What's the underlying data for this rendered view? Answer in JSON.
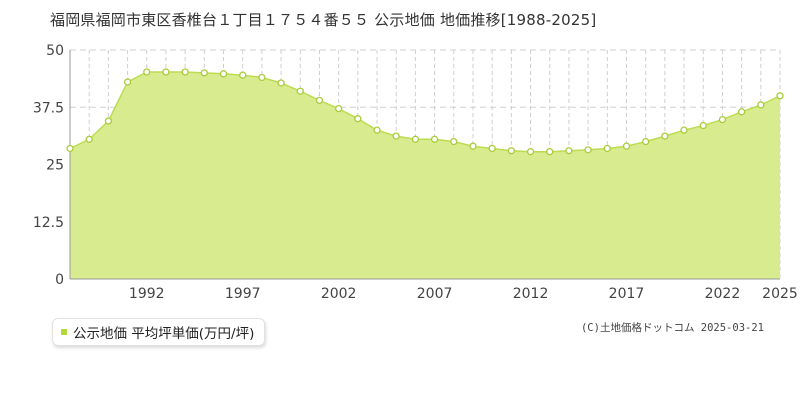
{
  "title": "福岡県福岡市東区香椎台１丁目１７５４番５５ 公示地価 地価推移[1988-2025]",
  "legend": {
    "label": "公示地価 平均坪単価(万円/坪)"
  },
  "copyright": "(C)土地価格ドットコム 2025-03-21",
  "colors": {
    "fill": "#d8ec8f",
    "line": "#bcdc52",
    "marker_fill": "#ffffff",
    "marker_stroke": "#a8cc3a",
    "legend_swatch": "#b3d83c"
  },
  "chart_data": {
    "type": "area",
    "x": [
      1988,
      1989,
      1990,
      1991,
      1992,
      1993,
      1994,
      1995,
      1996,
      1997,
      1998,
      1999,
      2000,
      2001,
      2002,
      2003,
      2004,
      2005,
      2006,
      2007,
      2008,
      2009,
      2010,
      2011,
      2012,
      2013,
      2014,
      2015,
      2016,
      2017,
      2018,
      2019,
      2020,
      2021,
      2022,
      2023,
      2024,
      2025
    ],
    "series": [
      {
        "values": [
          28.5,
          30.5,
          34.5,
          43.0,
          45.2,
          45.2,
          45.2,
          45.0,
          44.8,
          44.5,
          44.0,
          42.8,
          41.0,
          39.0,
          37.2,
          35.0,
          32.5,
          31.2,
          30.5,
          30.5,
          30.0,
          29.0,
          28.5,
          28.0,
          27.8,
          27.8,
          28.0,
          28.2,
          28.5,
          29.0,
          30.0,
          31.2,
          32.5,
          33.5,
          34.8,
          36.5,
          38.0,
          40.0
        ]
      }
    ],
    "y_ticks": [
      "0",
      "12.5",
      "25",
      "37.5",
      "50"
    ],
    "x_tick_labels": [
      "1992",
      "1997",
      "2002",
      "2007",
      "2012",
      "2017",
      "2022",
      "2025"
    ],
    "x_tick_years": [
      1992,
      1997,
      2002,
      2007,
      2012,
      2017,
      2022,
      2025
    ],
    "ylim": [
      0,
      50
    ],
    "xlim": [
      1988,
      2025
    ],
    "grid": true
  }
}
